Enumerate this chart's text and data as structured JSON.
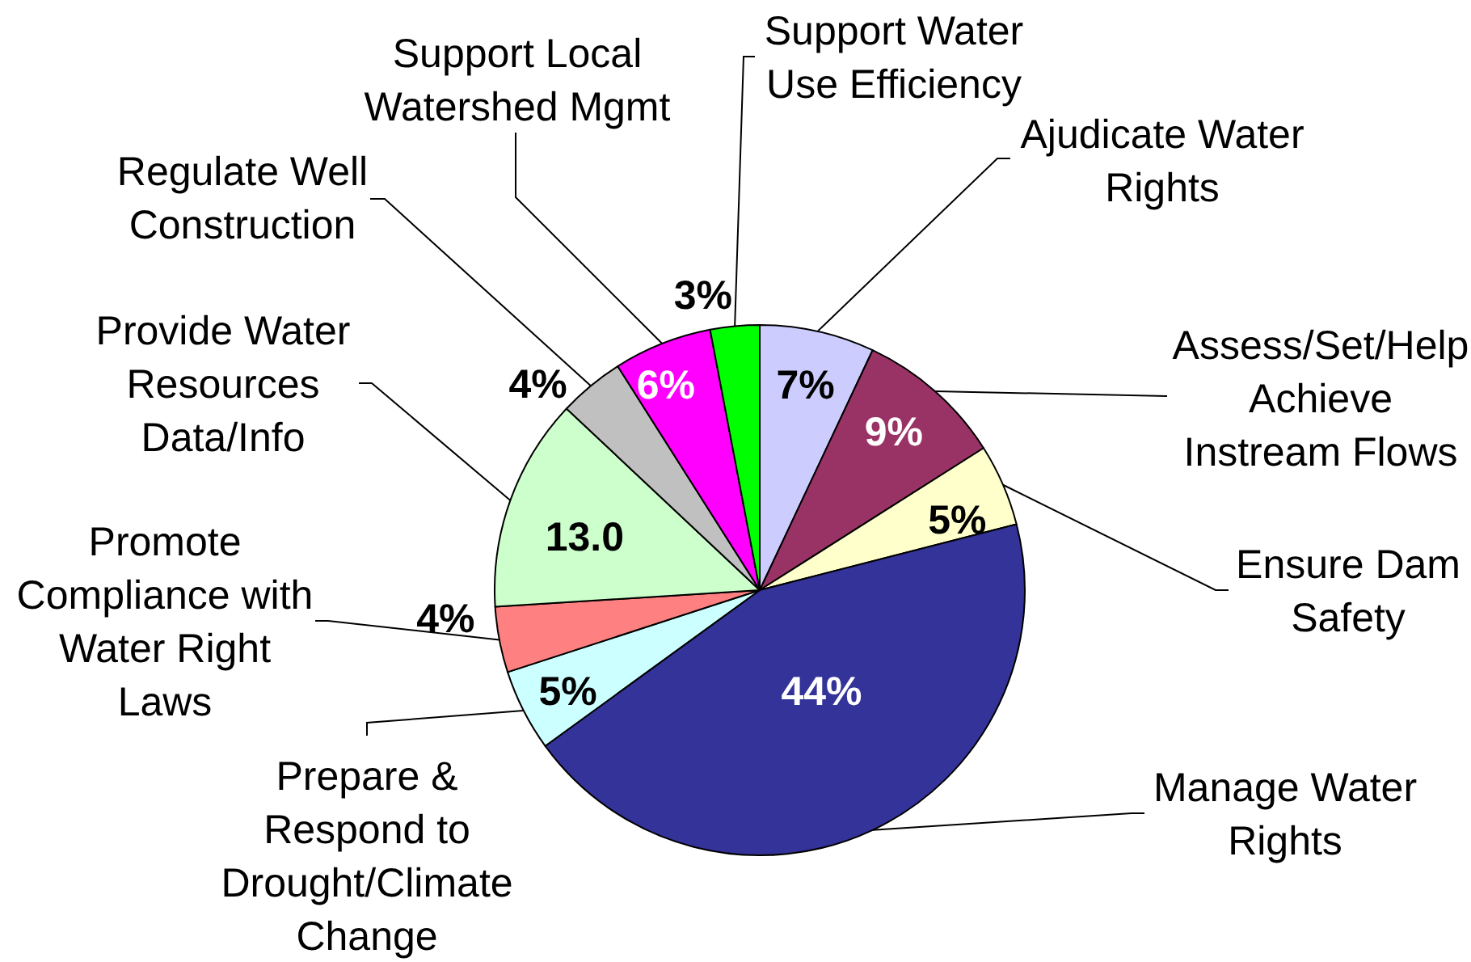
{
  "chart_data": {
    "type": "pie",
    "categories": [
      "Ajudicate Water Rights",
      "Assess/Set/Help Achieve Instream Flows",
      "Ensure Dam Safety",
      "Manage Water Rights",
      "Prepare & Respond to Drought/Climate Change",
      "Promote Compliance with Water Right Laws",
      "Provide Water Resources Data/Info",
      "Regulate Well Construction",
      "Support Local Watershed Mgmt",
      "Support Water Use Efficiency"
    ],
    "values": [
      7,
      9,
      5,
      44,
      5,
      4,
      13,
      4,
      6,
      3
    ],
    "colors": [
      "#ccccff",
      "#993366",
      "#ffffcc",
      "#333399",
      "#ccffff",
      "#ff8080",
      "#ccffcc",
      "#c0c0c0",
      "#ff00ff",
      "#00ff00"
    ],
    "value_labels": [
      "7%",
      "9%",
      "5%",
      "44%",
      "5%",
      "4%",
      "13.0",
      "4%",
      "6%",
      "3%"
    ]
  }
}
